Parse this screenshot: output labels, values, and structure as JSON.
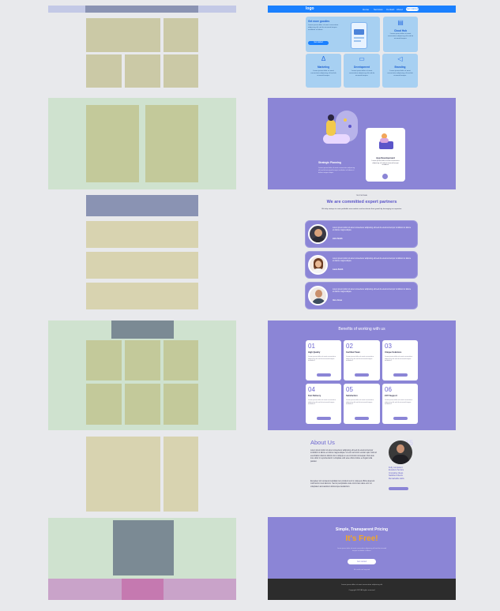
{
  "nav": {
    "logo": "logo",
    "links": [
      "Home",
      "Services",
      "Contact",
      "About"
    ],
    "cta": "Get started"
  },
  "hero_cards": {
    "main": {
      "title": "Get more goodies",
      "text": "Lorem ipsum dolor sit amet consectetur adipiscing elit sed do eiusmod tempor incididunt ut labore.",
      "button": "Get started"
    },
    "cloud": {
      "title": "Cloud Hub",
      "text": "Lorem ipsum dolor sit amet consectetur adipiscing elit sed do eiusmod tempor."
    },
    "small": [
      {
        "title": "Marketing",
        "text": "Lorem ipsum dolor sit amet consectetur adipiscing elit sed do eiusmod tempor."
      },
      {
        "title": "Development",
        "text": "Lorem ipsum dolor sit amet consectetur adipiscing elit sed do eiusmod tempor."
      },
      {
        "title": "Branding",
        "text": "Lorem ipsum dolor sit amet consectetur adipiscing elit sed do eiusmod tempor."
      }
    ]
  },
  "strategic": {
    "title": "Strategic Planning",
    "text": "Lorem ipsum dolor sit amet consectetur adipiscing elit sed do eiusmod tempor incididunt ut labore et dolore magna aliqua.",
    "app_title": "App Development",
    "app_text": "Lorem ipsum dolor sit amet consectetur adipiscing elit sed do eiusmod tempor incididunt."
  },
  "testimonials": {
    "eyebrow": "TESTIMONIAL",
    "title": "We are committed expert partners",
    "subtitle": "We help startups to seize profitable new markets and accelerate their growth by leveraging our expertise.",
    "items": [
      {
        "quote": "Lorem ipsum dolor sit amet consectetur adipiscing elit sed do eiusmod tempor incididunt ut labore et dolore magna aliqua.",
        "name": "John Smith"
      },
      {
        "quote": "Lorem ipsum dolor sit amet consectetur adipiscing elit sed do eiusmod tempor incididunt ut labore et dolore magna aliqua.",
        "name": "Laura Smith"
      },
      {
        "quote": "Lorem ipsum dolor sit amet consectetur adipiscing elit sed do eiusmod tempor incididunt ut labore et dolore magna aliqua.",
        "name": "Alex Jones"
      }
    ]
  },
  "benefits": {
    "title": "Benefits of working with us",
    "items": [
      {
        "num": "01",
        "title": "High Quality",
        "text": "Lorem ipsum dolor sit amet consectetur adipiscing elit sed do eiusmod tempor incididunt."
      },
      {
        "num": "02",
        "title": "Certified Team",
        "text": "Lorem ipsum dolor sit amet consectetur adipiscing elit sed do eiusmod tempor incididunt."
      },
      {
        "num": "03",
        "title": "Unique Solutions",
        "text": "Lorem ipsum dolor sit amet consectetur adipiscing elit sed do eiusmod tempor incididunt."
      },
      {
        "num": "04",
        "title": "Fast Delivery",
        "text": "Lorem ipsum dolor sit amet consectetur adipiscing elit sed do eiusmod tempor incididunt."
      },
      {
        "num": "05",
        "title": "Satisfaction",
        "text": "Lorem ipsum dolor sit amet consectetur adipiscing elit sed do eiusmod tempor incididunt."
      },
      {
        "num": "06",
        "title": "24/7 Support",
        "text": "Lorem ipsum dolor sit amet consectetur adipiscing elit sed do eiusmod tempor incididunt."
      }
    ]
  },
  "about": {
    "title": "About Us",
    "p1": "Lorem ipsum dolor sit amet consectetur adipiscing elit sed do eiusmod tempor incididunt ut labore et dolore magna aliqua. Ut enim ad minim veniam quis nostrud exercitation ullamco laboris nisi ut aliquip ex ea commodo consequat. Duis aute irure dolor in reprehenderit in voluptate velit esse cillum dolore eu fugiat nulla pariatur.",
    "p2": "Excepteur sint occaecat cupidatat non proident sunt in culpa qui officia deserunt mollit anim id est laborum. Sed ut perspiciatis unde omnis iste natus error sit voluptatem accusantium doloremque laudantium.",
    "list": [
      "Fully competent",
      "Excellent Service",
      "Innovative Ideas",
      "Satisfied Clients",
      "Remarkable skills"
    ],
    "badge": "15"
  },
  "pricing": {
    "title": "Simple, Transparent Pricing",
    "free": "It's Free!",
    "text": "Lorem ipsum dolor sit amet consectetur adipiscing elit sed do eiusmod tempor incididunt ut labore.",
    "button": "Get started",
    "note": "No credit card required"
  },
  "footer": {
    "line1": "Lorem ipsum dolor sit amet consectetur adipiscing elit",
    "line2": "Copyright 2023 All rights reserved"
  },
  "colors": {
    "nav_blue": "#1a80ff",
    "purple": "#8b85d6",
    "accent_orange": "#f5a623",
    "dark": "#2c2c2c"
  }
}
